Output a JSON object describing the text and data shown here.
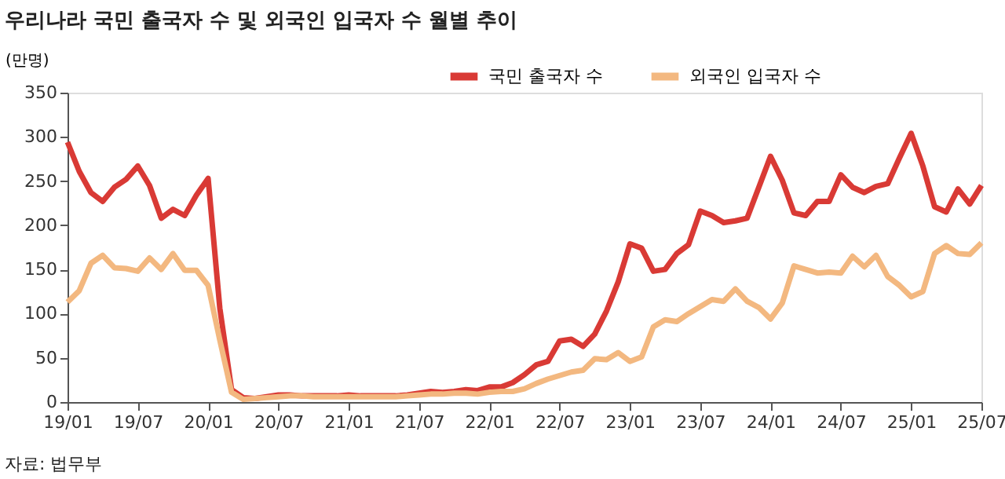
{
  "chart_data": {
    "type": "line",
    "title": "우리나라 국민 출국자 수 및 외국인 입국자 수 월별 추이",
    "ylabel": "(만명)",
    "categories": [
      "19/01",
      null,
      null,
      null,
      null,
      null,
      "19/07",
      null,
      null,
      null,
      null,
      null,
      "20/01",
      null,
      null,
      null,
      null,
      null,
      "20/07",
      null,
      null,
      null,
      null,
      null,
      "21/01",
      null,
      null,
      null,
      null,
      null,
      "21/07",
      null,
      null,
      null,
      null,
      null,
      "22/01",
      null,
      null,
      null,
      null,
      null,
      "22/07",
      null,
      null,
      null,
      null,
      null,
      "23/01",
      null,
      null,
      null,
      null,
      null,
      "23/07",
      null,
      null,
      null,
      null,
      null,
      "24/01",
      null,
      null,
      null,
      null,
      null,
      "24/07",
      null,
      null,
      null,
      null,
      null,
      "25/01",
      null,
      null,
      null,
      null,
      null,
      "25/07"
    ],
    "series": [
      {
        "name": "국민 출국자 수",
        "color": "#d93a35",
        "values": [
          294,
          261,
          237,
          227,
          243,
          252,
          267,
          245,
          208,
          218,
          211,
          234,
          253,
          106,
          14,
          5,
          4,
          6,
          8,
          8,
          7,
          7,
          7,
          7,
          8,
          7,
          7,
          7,
          7,
          8,
          10,
          12,
          11,
          12,
          14,
          13,
          17,
          17,
          22,
          31,
          42,
          46,
          69,
          71,
          63,
          77,
          103,
          136,
          179,
          174,
          148,
          150,
          168,
          178,
          216,
          211,
          203,
          205,
          208,
          243,
          278,
          251,
          214,
          211,
          227,
          227,
          257,
          243,
          237,
          244,
          247,
          276,
          304,
          267,
          221,
          215,
          241,
          224,
          245
        ]
      },
      {
        "name": "외국인 입국자 수",
        "color": "#f3b880",
        "values": [
          113,
          126,
          157,
          166,
          152,
          151,
          148,
          163,
          150,
          168,
          149,
          149,
          132,
          70,
          11,
          3,
          4,
          5,
          6,
          7,
          7,
          6,
          6,
          6,
          6,
          6,
          6,
          6,
          6,
          7,
          8,
          9,
          9,
          10,
          10,
          9,
          11,
          12,
          12,
          15,
          21,
          26,
          30,
          34,
          36,
          49,
          48,
          56,
          46,
          51,
          85,
          93,
          91,
          100,
          108,
          116,
          114,
          128,
          114,
          107,
          94,
          112,
          154,
          150,
          146,
          147,
          146,
          165,
          153,
          166,
          142,
          132,
          119,
          125,
          168,
          177,
          168,
          167,
          180
        ]
      }
    ],
    "ylim": [
      0,
      350
    ],
    "yticks": [
      0,
      50,
      100,
      150,
      200,
      250,
      300,
      350
    ],
    "grid": false,
    "legend": "top",
    "marker": "none",
    "line_style": "solid",
    "annotations": [
      "자료: 법무부"
    ]
  }
}
